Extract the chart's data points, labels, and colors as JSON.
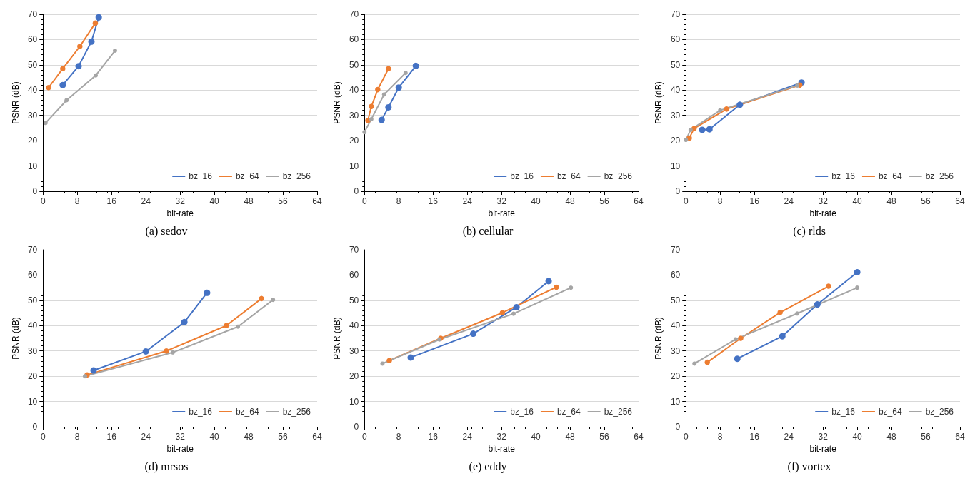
{
  "chart_data": [
    {
      "type": "line",
      "title": "(a) sedov",
      "xlabel": "bit-rate",
      "ylabel": "PSNR (dB)",
      "xlim": [
        0,
        64
      ],
      "xticks": [
        0,
        8,
        16,
        24,
        32,
        40,
        48,
        56,
        64
      ],
      "ylim": [
        0,
        70
      ],
      "yticks": [
        0,
        10,
        20,
        30,
        40,
        50,
        60,
        70
      ],
      "grid": "y",
      "legend": "bottom right",
      "marker": "circle",
      "line_style": "solid",
      "series": [
        {
          "name": "bz_16",
          "color": "#4472c4",
          "x": [
            4.6,
            8.3,
            11.3,
            13
          ],
          "values": [
            42,
            49.5,
            59.2,
            68.8
          ]
        },
        {
          "name": "bz_64",
          "color": "#ed7d31",
          "x": [
            1.3,
            4.6,
            8.6,
            12.2
          ],
          "values": [
            41,
            48.5,
            57.3,
            66.5
          ]
        },
        {
          "name": "bz_256",
          "color": "#a5a5a5",
          "x": [
            0.6,
            5.5,
            12.3,
            16.8
          ],
          "values": [
            27,
            36,
            45.8,
            55.6
          ]
        }
      ]
    },
    {
      "type": "line",
      "title": "(b) cellular",
      "xlabel": "bit-rate",
      "ylabel": "PSNR (dB)",
      "xlim": [
        0,
        64
      ],
      "xticks": [
        0,
        8,
        16,
        24,
        32,
        40,
        48,
        56,
        64
      ],
      "ylim": [
        0,
        70
      ],
      "yticks": [
        0,
        10,
        20,
        30,
        40,
        50,
        60,
        70
      ],
      "grid": "y",
      "legend": "bottom right",
      "marker": "circle",
      "line_style": "solid",
      "series": [
        {
          "name": "bz_16",
          "color": "#4472c4",
          "x": [
            4,
            5.6,
            8,
            12
          ],
          "values": [
            28.2,
            33.2,
            41,
            49.6
          ]
        },
        {
          "name": "bz_64",
          "color": "#ed7d31",
          "x": [
            0.8,
            1.6,
            3.1,
            5.6
          ],
          "values": [
            28,
            33.5,
            40.2,
            48.5
          ]
        },
        {
          "name": "bz_256",
          "color": "#a5a5a5",
          "x": [
            0,
            1.6,
            4.6,
            9.6
          ],
          "values": [
            23.4,
            28.5,
            38.3,
            46.8
          ]
        }
      ]
    },
    {
      "type": "line",
      "title": "(c) rlds",
      "xlabel": "bit-rate",
      "ylabel": "PSNR (dB)",
      "xlim": [
        0,
        64
      ],
      "xticks": [
        0,
        8,
        16,
        24,
        32,
        40,
        48,
        56,
        64
      ],
      "ylim": [
        0,
        70
      ],
      "yticks": [
        0,
        10,
        20,
        30,
        40,
        50,
        60,
        70
      ],
      "grid": "y",
      "legend": "bottom right",
      "marker": "circle",
      "line_style": "solid",
      "series": [
        {
          "name": "bz_16",
          "color": "#4472c4",
          "x": [
            3.8,
            5.5,
            12.6,
            27
          ],
          "values": [
            24.3,
            24.5,
            34.2,
            43
          ]
        },
        {
          "name": "bz_64",
          "color": "#ed7d31",
          "x": [
            0.8,
            1.9,
            9.5,
            26.6
          ],
          "values": [
            21,
            24.8,
            32.5,
            42
          ]
        },
        {
          "name": "bz_256",
          "color": "#a5a5a5",
          "x": [
            0,
            1.1,
            8,
            26
          ],
          "values": [
            20.3,
            24.3,
            32,
            41.8
          ]
        }
      ]
    },
    {
      "type": "line",
      "title": "(d) mrsos",
      "xlabel": "bit-rate",
      "ylabel": "PSNR (dB)",
      "xlim": [
        0,
        64
      ],
      "xticks": [
        0,
        8,
        16,
        24,
        32,
        40,
        48,
        56,
        64
      ],
      "ylim": [
        0,
        70
      ],
      "yticks": [
        0,
        10,
        20,
        30,
        40,
        50,
        60,
        70
      ],
      "grid": "y",
      "legend": "bottom right",
      "marker": "circle",
      "line_style": "solid",
      "series": [
        {
          "name": "bz_16",
          "color": "#4472c4",
          "x": [
            11.8,
            24,
            33,
            38.3
          ],
          "values": [
            22.3,
            29.8,
            41.4,
            53
          ]
        },
        {
          "name": "bz_64",
          "color": "#ed7d31",
          "x": [
            10.3,
            28.8,
            42.8,
            51
          ],
          "values": [
            20.5,
            30,
            40,
            50.7
          ]
        },
        {
          "name": "bz_256",
          "color": "#a5a5a5",
          "x": [
            9.8,
            30.3,
            45.5,
            53.7
          ],
          "values": [
            20,
            29.4,
            39.6,
            50.2
          ]
        }
      ]
    },
    {
      "type": "line",
      "title": "(e) eddy",
      "xlabel": "bit-rate",
      "ylabel": "PSNR (dB)",
      "xlim": [
        0,
        64
      ],
      "xticks": [
        0,
        8,
        16,
        24,
        32,
        40,
        48,
        56,
        64
      ],
      "ylim": [
        0,
        70
      ],
      "yticks": [
        0,
        10,
        20,
        30,
        40,
        50,
        60,
        70
      ],
      "grid": "y",
      "legend": "bottom right",
      "marker": "circle",
      "line_style": "solid",
      "series": [
        {
          "name": "bz_16",
          "color": "#4472c4",
          "x": [
            10.8,
            25.4,
            35.5,
            43
          ],
          "values": [
            27.4,
            36.8,
            47.3,
            57.6
          ]
        },
        {
          "name": "bz_64",
          "color": "#ed7d31",
          "x": [
            5.8,
            17.8,
            32.2,
            44.8
          ],
          "values": [
            26.2,
            35,
            45.1,
            55.2
          ]
        },
        {
          "name": "bz_256",
          "color": "#a5a5a5",
          "x": [
            4.2,
            17.5,
            34.8,
            48.2
          ],
          "values": [
            25,
            34.5,
            44.7,
            55
          ]
        }
      ]
    },
    {
      "type": "line",
      "title": "(f) vortex",
      "xlabel": "bit-rate",
      "ylabel": "PSNR (dB)",
      "xlim": [
        0,
        64
      ],
      "xticks": [
        0,
        8,
        16,
        24,
        32,
        40,
        48,
        56,
        64
      ],
      "ylim": [
        0,
        70
      ],
      "yticks": [
        0,
        10,
        20,
        30,
        40,
        50,
        60,
        70
      ],
      "grid": "y",
      "legend": "bottom right",
      "marker": "circle",
      "line_style": "solid",
      "series": [
        {
          "name": "bz_16",
          "color": "#4472c4",
          "x": [
            12,
            22.5,
            30.7,
            40
          ],
          "values": [
            26.9,
            35.8,
            48.4,
            61.1
          ]
        },
        {
          "name": "bz_64",
          "color": "#ed7d31",
          "x": [
            5,
            12.8,
            22,
            33.3
          ],
          "values": [
            25.5,
            35,
            45.2,
            55.6
          ]
        },
        {
          "name": "bz_256",
          "color": "#a5a5a5",
          "x": [
            2,
            11.6,
            26,
            40
          ],
          "values": [
            25,
            34.6,
            44.8,
            55
          ]
        }
      ]
    }
  ]
}
